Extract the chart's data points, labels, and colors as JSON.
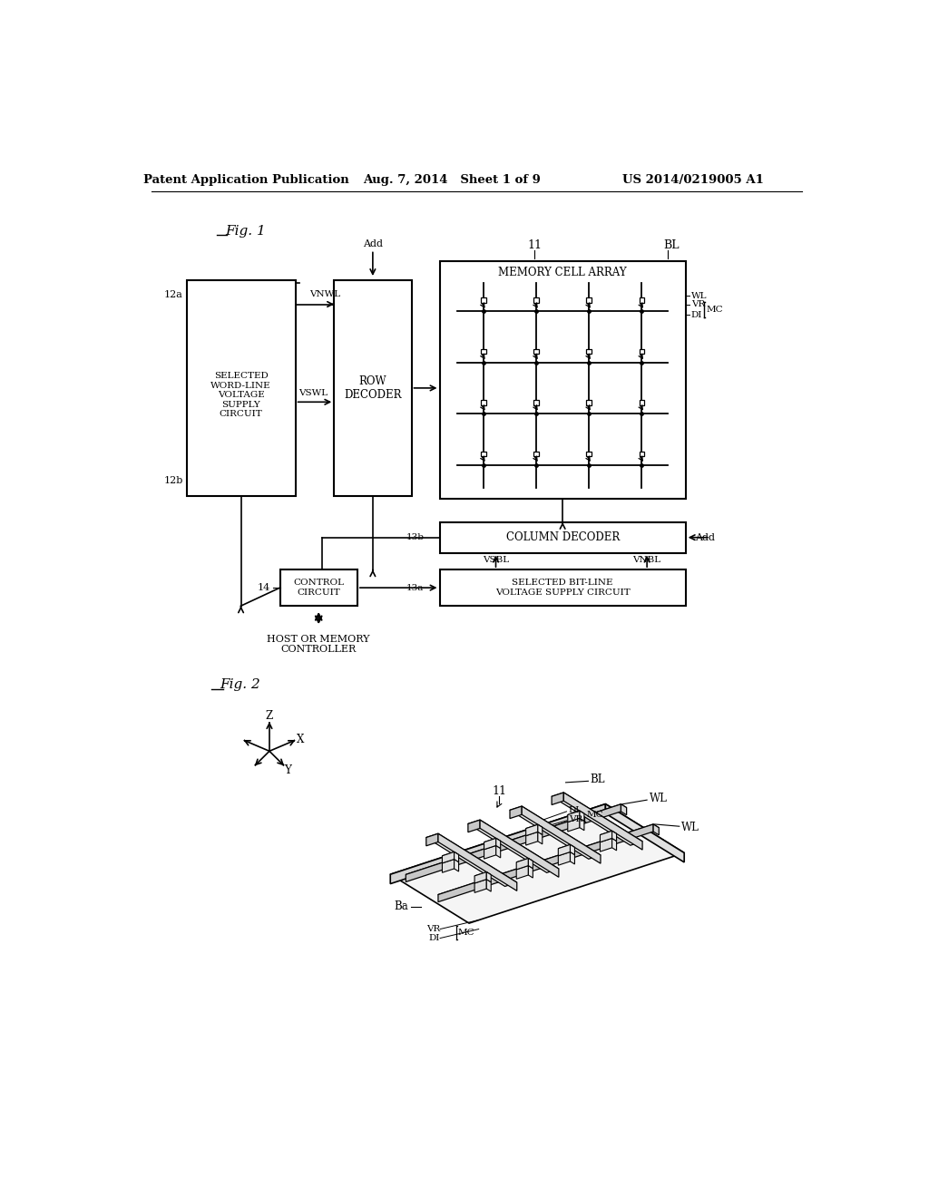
{
  "bg_color": "#ffffff",
  "header_text": "Patent Application Publication",
  "header_date": "Aug. 7, 2014   Sheet 1 of 9",
  "header_patent": "US 2014/0219005 A1",
  "fig1_label": "Fig. 1",
  "fig2_label": "Fig. 2"
}
